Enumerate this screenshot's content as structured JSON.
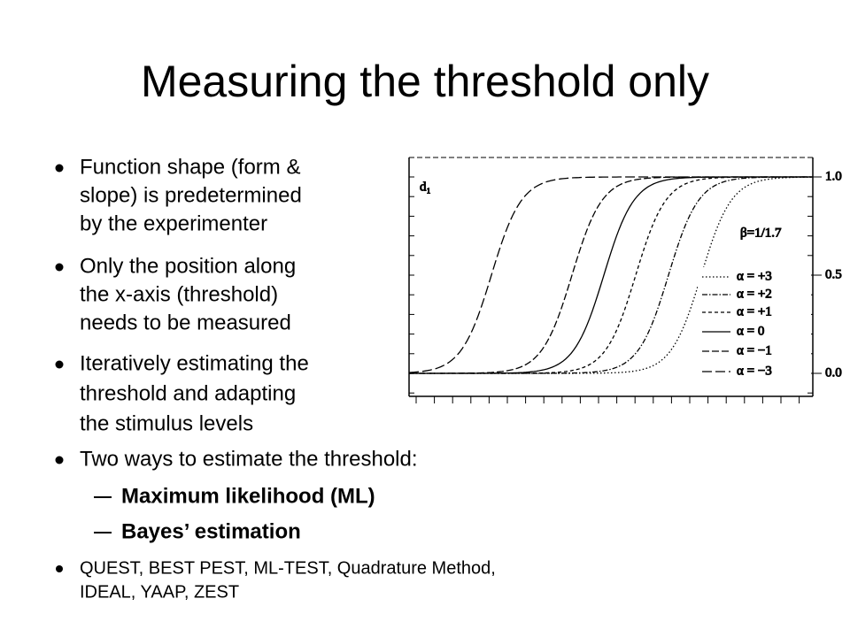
{
  "slide": {
    "title": "Measuring the threshold only",
    "bullets": [
      {
        "lines": [
          "Function shape (form &",
          "slope) is predetermined",
          "by the experimenter"
        ]
      },
      {
        "lines": [
          "Only the position along",
          "the x-axis  (threshold)",
          "needs to be measured"
        ]
      },
      {
        "lines": [
          "Iteratively estimating the",
          "threshold and adapting",
          "the stimulus levels"
        ]
      },
      {
        "lines": [
          "Two ways to estimate the threshold:"
        ]
      }
    ],
    "sub_bullets": [
      "Maximum likelihood (ML)",
      "Bayes’ estimation"
    ],
    "last_bullet": {
      "lines": [
        "QUEST, BEST PEST, ML-TEST, Quadrature Method,",
        "IDEAL, YAAP, ZEST"
      ]
    },
    "figure": {
      "panel_label": "d₁",
      "parameter": "β=1/1.7",
      "axis_labels": [
        "1.0",
        "0.5",
        "0.0"
      ],
      "legend": [
        "α  =  +3",
        "α  =  +2",
        "α  =  +1",
        "α  =   0",
        "α  =  −1",
        "α  =  −3"
      ]
    }
  }
}
